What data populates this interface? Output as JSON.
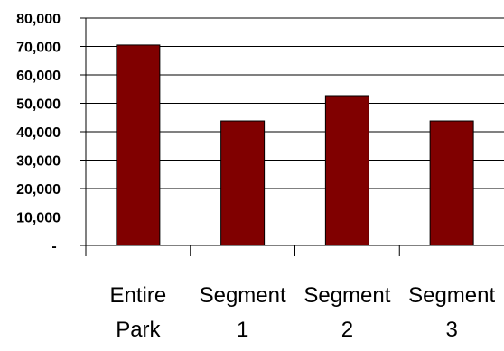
{
  "chart_data": {
    "type": "bar",
    "categories": [
      [
        "Entire",
        "Park"
      ],
      [
        "Segment",
        "1"
      ],
      [
        "Segment",
        "2"
      ],
      [
        "Segment",
        "3"
      ]
    ],
    "values": [
      70500,
      43800,
      52700,
      43800
    ],
    "ylim": [
      0,
      80000
    ],
    "yticks": [
      0,
      10000,
      20000,
      30000,
      40000,
      50000,
      60000,
      70000,
      80000
    ],
    "ytick_labels": [
      "-",
      "10,000",
      "20,000",
      "30,000",
      "40,000",
      "50,000",
      "60,000",
      "70,000",
      "80,000"
    ],
    "bar_color": "#800000",
    "grid": true,
    "legend": "none"
  }
}
